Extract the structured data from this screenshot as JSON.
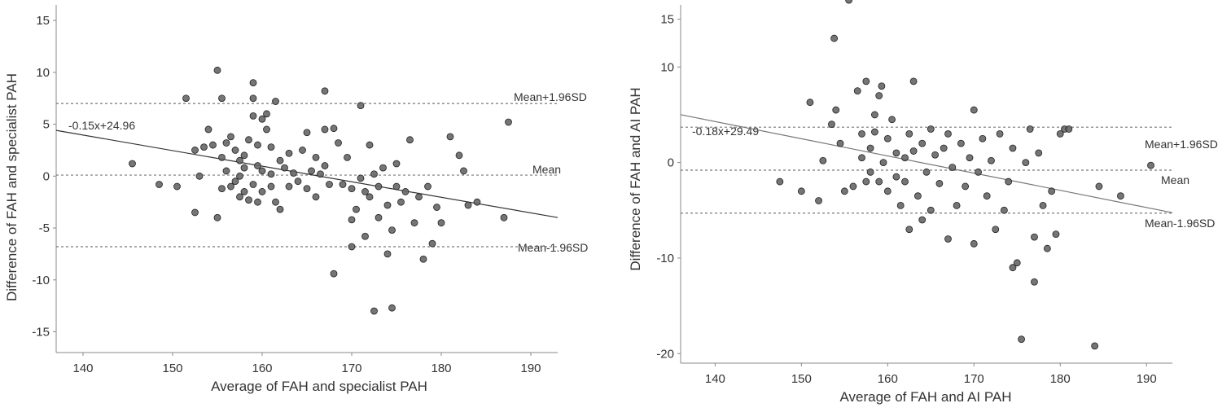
{
  "chart_data": [
    {
      "type": "scatter",
      "xlabel": "Average of FAH and specialist PAH",
      "ylabel": "Difference of FAH and specialist PAH",
      "xlim": [
        137,
        193
      ],
      "ylim": [
        -17,
        16.5
      ],
      "xticks": [
        140,
        150,
        160,
        170,
        180,
        190
      ],
      "yticks": [
        15,
        10,
        5,
        0,
        -5,
        -10,
        -15
      ],
      "grid": false,
      "lines": {
        "upper": {
          "label": "Mean+1.96SD",
          "y": 7.0
        },
        "mean": {
          "label": "Mean",
          "y": 0.1
        },
        "lower": {
          "label": "Mean-1.96SD",
          "y": -6.8
        }
      },
      "regression": {
        "label": "-0.15x+24.96",
        "slope": -0.15,
        "intercept": 24.96
      },
      "points": [
        [
          145.5,
          1.2
        ],
        [
          148.5,
          -0.8
        ],
        [
          150.5,
          -1
        ],
        [
          151.5,
          7.5
        ],
        [
          152.5,
          2.5
        ],
        [
          152.5,
          -3.5
        ],
        [
          153,
          0
        ],
        [
          153.5,
          2.8
        ],
        [
          154,
          4.5
        ],
        [
          154.5,
          3
        ],
        [
          155,
          -4
        ],
        [
          155,
          10.2
        ],
        [
          155.5,
          7.5
        ],
        [
          155.5,
          -1.2
        ],
        [
          155.5,
          1.8
        ],
        [
          156,
          3.2
        ],
        [
          156,
          0.5
        ],
        [
          156.5,
          -1
        ],
        [
          156.5,
          3.8
        ],
        [
          157,
          2.5
        ],
        [
          157,
          -0.5
        ],
        [
          157.5,
          1.5
        ],
        [
          157.5,
          0
        ],
        [
          157.5,
          -2
        ],
        [
          158,
          2
        ],
        [
          158,
          -1.5
        ],
        [
          158,
          0.8
        ],
        [
          158.5,
          3.5
        ],
        [
          158.5,
          -2.3
        ],
        [
          159,
          5.8
        ],
        [
          159,
          9
        ],
        [
          159,
          7.5
        ],
        [
          159,
          -0.8
        ],
        [
          159.5,
          1
        ],
        [
          159.5,
          3
        ],
        [
          159.5,
          -2.5
        ],
        [
          160,
          5.5
        ],
        [
          160,
          0.5
        ],
        [
          160,
          -1.5
        ],
        [
          160.5,
          6
        ],
        [
          160.5,
          4.5
        ],
        [
          161,
          2.8
        ],
        [
          161,
          -1
        ],
        [
          161,
          0.2
        ],
        [
          161.5,
          7.2
        ],
        [
          161.5,
          -2.5
        ],
        [
          162,
          1.5
        ],
        [
          162,
          -3.2
        ],
        [
          162.5,
          0.8
        ],
        [
          163,
          -1
        ],
        [
          163,
          2.2
        ],
        [
          163.5,
          0.3
        ],
        [
          164,
          -0.5
        ],
        [
          164.5,
          2.5
        ],
        [
          165,
          4.2
        ],
        [
          165,
          -1.2
        ],
        [
          165.5,
          0.5
        ],
        [
          166,
          1.8
        ],
        [
          166,
          -2
        ],
        [
          166.5,
          0.2
        ],
        [
          167,
          4.5
        ],
        [
          167,
          8.2
        ],
        [
          167,
          1
        ],
        [
          167.5,
          -0.8
        ],
        [
          168,
          4.6
        ],
        [
          168,
          -9.4
        ],
        [
          168.5,
          3.2
        ],
        [
          169,
          -0.8
        ],
        [
          169.5,
          1.8
        ],
        [
          170,
          -1.2
        ],
        [
          170,
          -4.2
        ],
        [
          170,
          -6.8
        ],
        [
          170.5,
          -3.2
        ],
        [
          171,
          6.8
        ],
        [
          171,
          -0.2
        ],
        [
          171.5,
          -5.8
        ],
        [
          171.5,
          -1.5
        ],
        [
          172,
          3
        ],
        [
          172,
          -2
        ],
        [
          172.5,
          -13
        ],
        [
          172.5,
          0.2
        ],
        [
          173,
          -4
        ],
        [
          173,
          -1
        ],
        [
          173.5,
          0.8
        ],
        [
          174,
          -7.5
        ],
        [
          174,
          -2.8
        ],
        [
          174.5,
          -12.7
        ],
        [
          174.5,
          -5.2
        ],
        [
          175,
          -1
        ],
        [
          175,
          1.2
        ],
        [
          175.5,
          -2.5
        ],
        [
          176,
          -1.5
        ],
        [
          176.5,
          3.5
        ],
        [
          177,
          -4.5
        ],
        [
          177.5,
          -2
        ],
        [
          178,
          -8
        ],
        [
          178.5,
          -1
        ],
        [
          179,
          -6.5
        ],
        [
          179.5,
          -3
        ],
        [
          180,
          -4.5
        ],
        [
          181,
          3.8
        ],
        [
          182,
          2
        ],
        [
          182.5,
          0.5
        ],
        [
          183,
          -2.8
        ],
        [
          184,
          -2.5
        ],
        [
          187,
          -4
        ],
        [
          187.5,
          5.2
        ]
      ]
    },
    {
      "type": "scatter",
      "xlabel": "Average of FAH and AI PAH",
      "ylabel": "Difference of FAH and AI PAH",
      "xlim": [
        136,
        193
      ],
      "ylim": [
        -21,
        16.5
      ],
      "xticks": [
        140,
        150,
        160,
        170,
        180,
        190
      ],
      "yticks": [
        15,
        10,
        0,
        -10,
        -20
      ],
      "grid": false,
      "lines": {
        "upper": {
          "label": "Mean+1.96SD",
          "y": 3.7
        },
        "mean": {
          "label": "Mean",
          "y": -0.8
        },
        "lower": {
          "label": "Mean-1.96SD",
          "y": -5.3
        }
      },
      "regression": {
        "label": "-0.18x+29.49",
        "slope": -0.18,
        "intercept": 29.49
      },
      "points": [
        [
          147.5,
          -2
        ],
        [
          150,
          -3
        ],
        [
          151,
          6.3
        ],
        [
          152,
          -4
        ],
        [
          152.5,
          0.2
        ],
        [
          153.5,
          4
        ],
        [
          153.8,
          13
        ],
        [
          154,
          5.5
        ],
        [
          154.5,
          2
        ],
        [
          155,
          -3
        ],
        [
          155.5,
          17
        ],
        [
          156,
          -2.5
        ],
        [
          156.5,
          7.5
        ],
        [
          157,
          0.5
        ],
        [
          157,
          3
        ],
        [
          157.5,
          -2
        ],
        [
          157.5,
          8.5
        ],
        [
          158,
          1.5
        ],
        [
          158,
          -1
        ],
        [
          158.5,
          5
        ],
        [
          158.5,
          3.2
        ],
        [
          159,
          -2
        ],
        [
          159,
          7
        ],
        [
          159.3,
          8
        ],
        [
          159.5,
          0
        ],
        [
          160,
          2.5
        ],
        [
          160,
          -3
        ],
        [
          160.5,
          4.5
        ],
        [
          161,
          -1.5
        ],
        [
          161,
          1
        ],
        [
          161.5,
          -4.5
        ],
        [
          162,
          0.5
        ],
        [
          162,
          -2
        ],
        [
          162.5,
          3
        ],
        [
          162.5,
          -7
        ],
        [
          163,
          8.5
        ],
        [
          163,
          1.2
        ],
        [
          163.5,
          -3.5
        ],
        [
          164,
          -6
        ],
        [
          164,
          2
        ],
        [
          164.5,
          -1
        ],
        [
          165,
          3.5
        ],
        [
          165,
          -5
        ],
        [
          165.5,
          0.8
        ],
        [
          166,
          -2.2
        ],
        [
          166.5,
          1.5
        ],
        [
          167,
          -8
        ],
        [
          167,
          3
        ],
        [
          167.5,
          -0.5
        ],
        [
          168,
          -4.5
        ],
        [
          168.5,
          2
        ],
        [
          169,
          -2.5
        ],
        [
          169.5,
          0.5
        ],
        [
          170,
          -8.5
        ],
        [
          170,
          5.5
        ],
        [
          170.5,
          -1
        ],
        [
          171,
          2.5
        ],
        [
          171.5,
          -3.5
        ],
        [
          172,
          0.2
        ],
        [
          172.5,
          -7
        ],
        [
          173,
          3
        ],
        [
          173.5,
          -5
        ],
        [
          174,
          -2
        ],
        [
          174.5,
          1.5
        ],
        [
          174.5,
          -11
        ],
        [
          175,
          -10.5
        ],
        [
          175.5,
          -18.5
        ],
        [
          176,
          0
        ],
        [
          176.5,
          3.5
        ],
        [
          177,
          -7.8
        ],
        [
          177,
          -12.5
        ],
        [
          177.5,
          1
        ],
        [
          178,
          -4.5
        ],
        [
          178.5,
          -9
        ],
        [
          179,
          -3
        ],
        [
          179.5,
          -7.5
        ],
        [
          180,
          3
        ],
        [
          180.5,
          3.5
        ],
        [
          181,
          3.5
        ],
        [
          184,
          -19.2
        ],
        [
          184.5,
          -2.5
        ],
        [
          187,
          -3.5
        ],
        [
          190.5,
          -0.3
        ]
      ]
    }
  ]
}
